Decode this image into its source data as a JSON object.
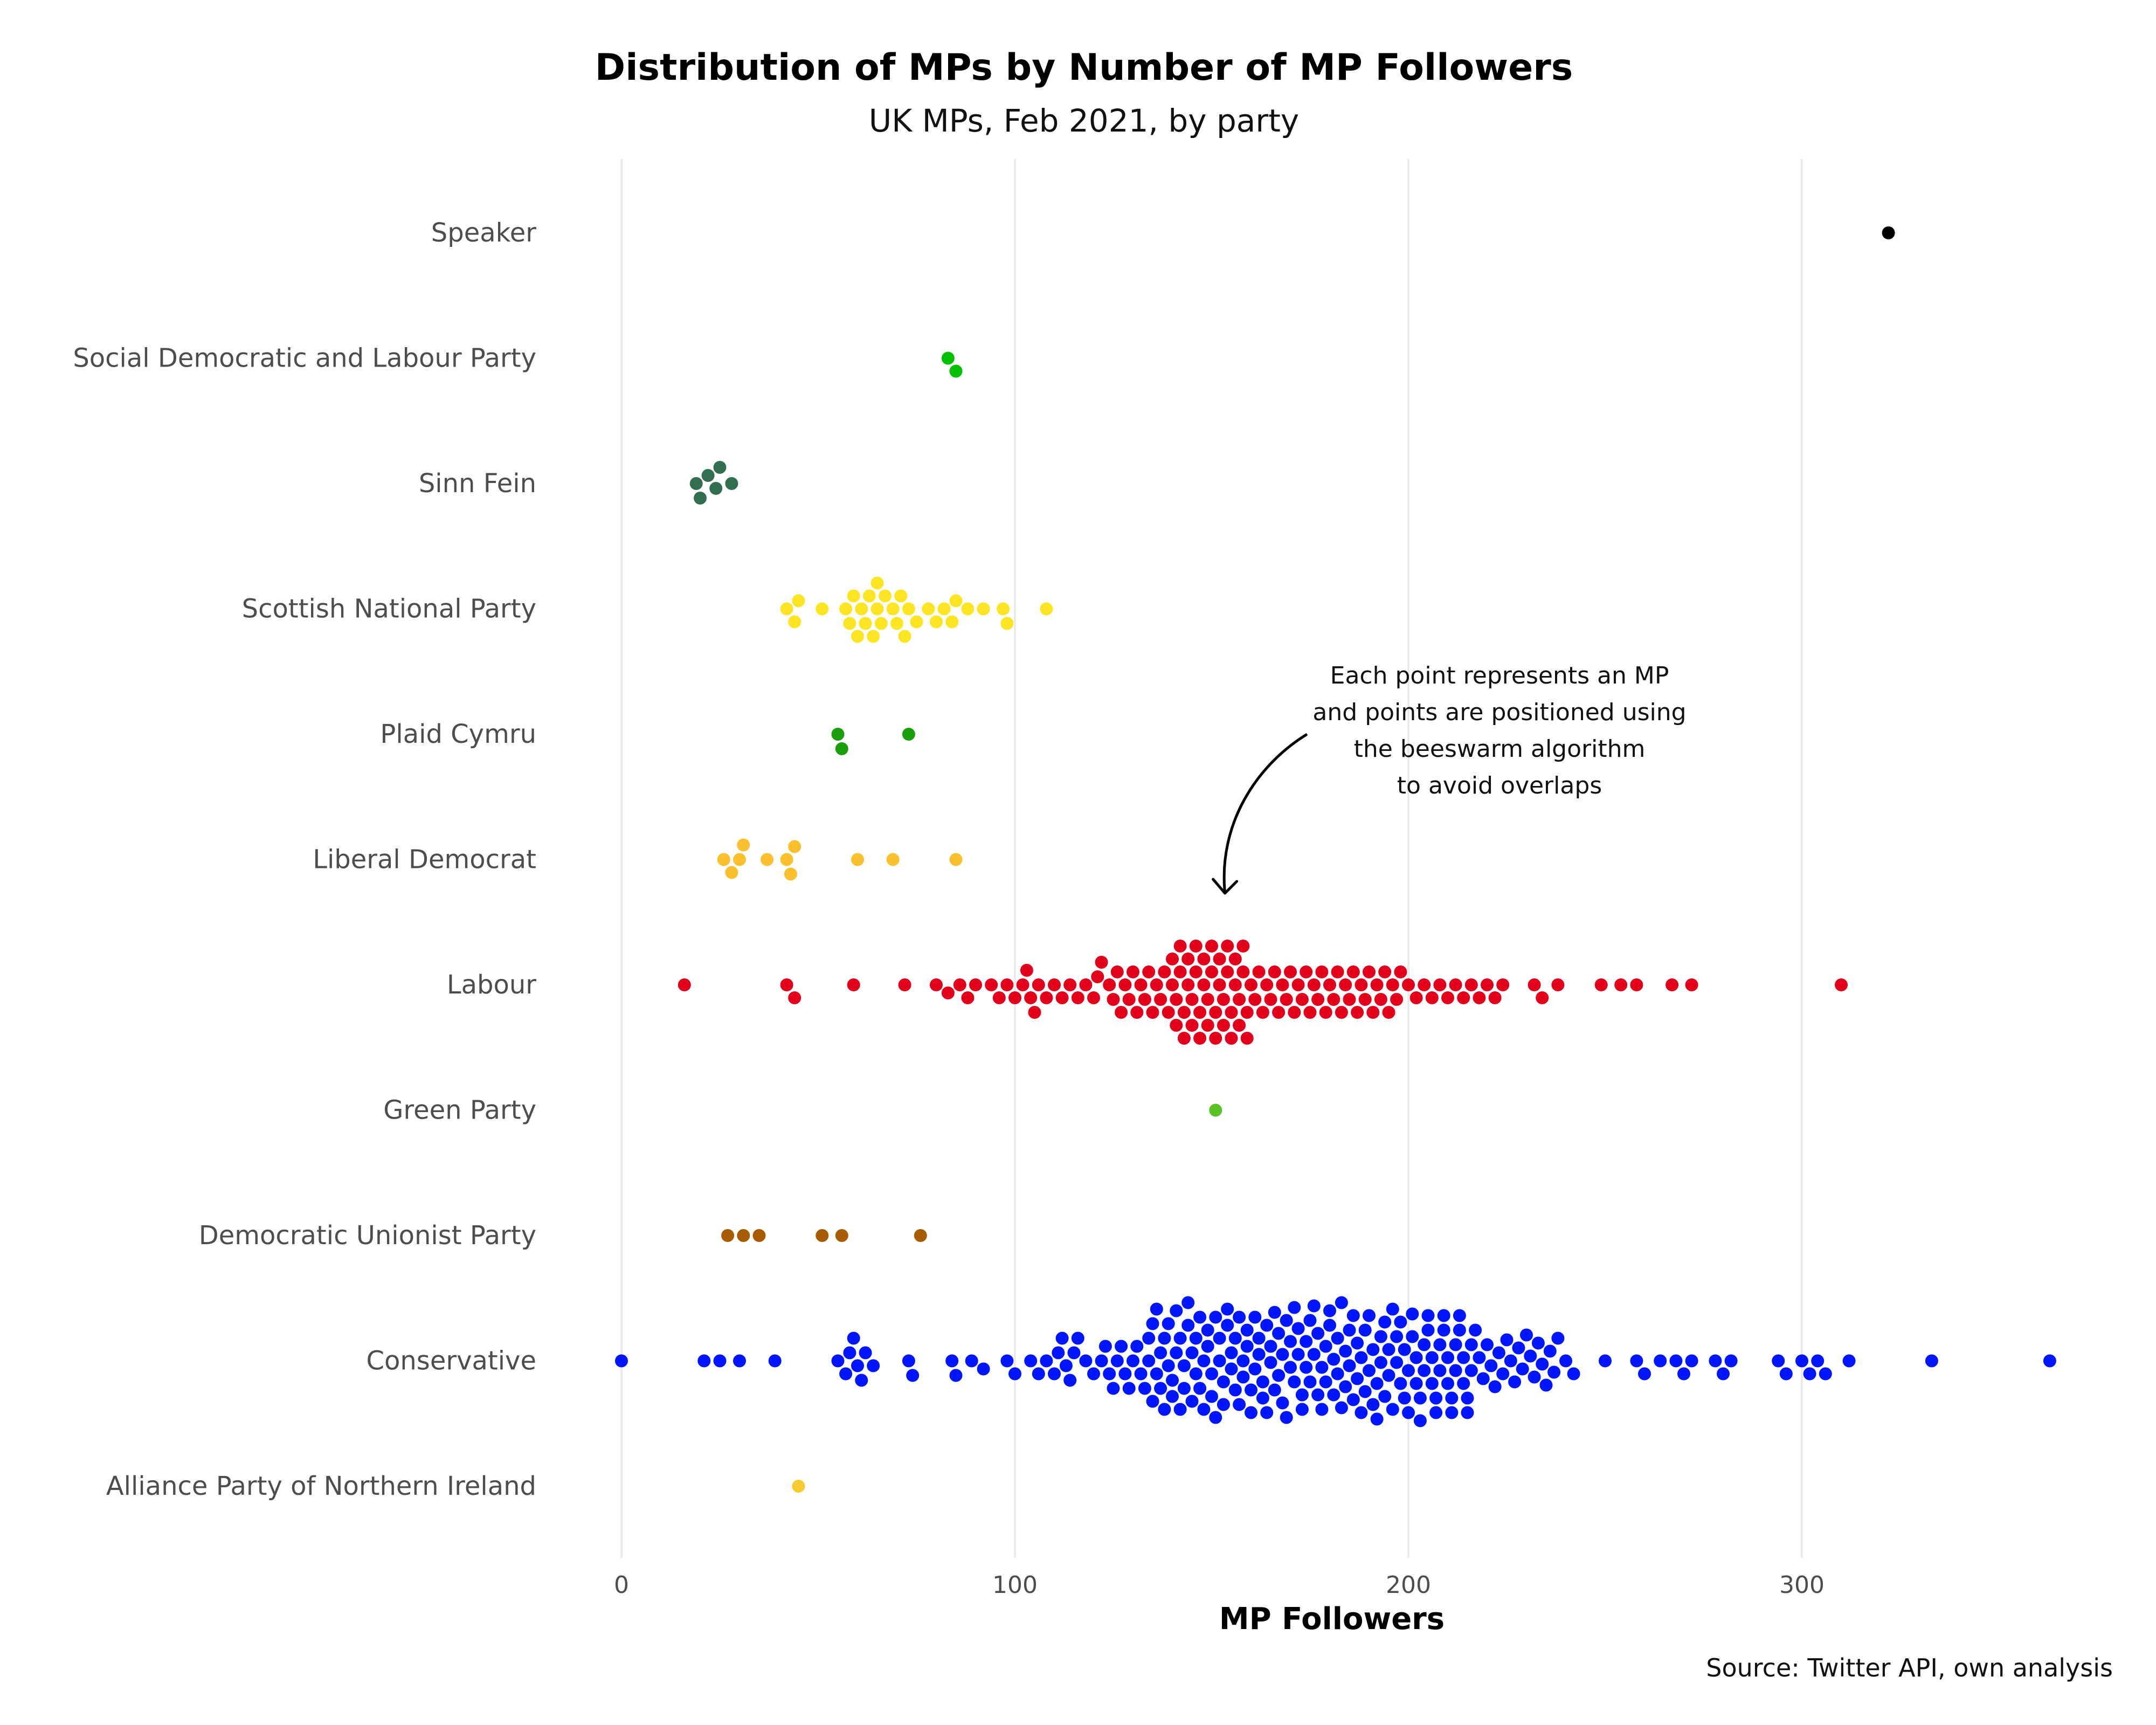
{
  "chart_data": {
    "type": "scatter",
    "style": "beeswarm",
    "title": "Distribution of MPs by Number of MP Followers",
    "subtitle": "UK MPs, Feb 2021, by party",
    "xlabel": "MP Followers",
    "ylabel": "",
    "xlim": [
      0,
      365
    ],
    "xticks": [
      "0",
      "100",
      "200",
      "300"
    ],
    "grid": "vertical major gridlines",
    "legend": "none",
    "caption": "Source: Twitter API, own analysis",
    "annotation": {
      "lines": [
        "Each point represents an MP",
        "and points are positioned using",
        "the beeswarm algorithm",
        "to avoid overlaps"
      ],
      "points_to": {
        "party": "Labour",
        "x": 152
      }
    },
    "categories": [
      "Speaker",
      "Social Democratic and Labour Party",
      "Sinn Fein",
      "Scottish National Party",
      "Plaid Cymru",
      "Liberal Democrat",
      "Labour",
      "Green Party",
      "Democratic Unionist Party",
      "Conservative",
      "Alliance Party of Northern Ireland"
    ],
    "series": [
      {
        "category": "Speaker",
        "color": "#000000",
        "x": [
          322
        ]
      },
      {
        "category": "Social Democratic and Labour Party",
        "color": "#00c000",
        "x": [
          83,
          85
        ]
      },
      {
        "category": "Sinn Fein",
        "color": "#326f50",
        "x": [
          19,
          20,
          22,
          24,
          25,
          28
        ]
      },
      {
        "category": "Scottish National Party",
        "color": "#fde524",
        "x": [
          42,
          44,
          45,
          51,
          57,
          58,
          59,
          60,
          61,
          62,
          63,
          64,
          65,
          65,
          66,
          67,
          69,
          70,
          71,
          72,
          73,
          75,
          78,
          80,
          82,
          84,
          85,
          88,
          92,
          97,
          98,
          108
        ]
      },
      {
        "category": "Plaid Cymru",
        "color": "#1a9e0a",
        "x": [
          55,
          56,
          73
        ]
      },
      {
        "category": "Liberal Democrat",
        "color": "#fbc02d",
        "x": [
          26,
          28,
          30,
          31,
          37,
          42,
          43,
          44,
          60,
          69,
          85
        ]
      },
      {
        "category": "Labour",
        "color": "#e2001a",
        "x": [
          16,
          42,
          44,
          59,
          72,
          80,
          83,
          86,
          88,
          90,
          94,
          96,
          98,
          100,
          102,
          103,
          104,
          105,
          106,
          108,
          110,
          112,
          114,
          116,
          118,
          120,
          121,
          122,
          124,
          125,
          126,
          127,
          128,
          129,
          130,
          131,
          132,
          133,
          134,
          135,
          136,
          137,
          138,
          139,
          140,
          140,
          141,
          141,
          142,
          142,
          143,
          143,
          144,
          144,
          145,
          145,
          146,
          146,
          147,
          147,
          148,
          148,
          149,
          149,
          150,
          150,
          151,
          151,
          152,
          152,
          153,
          153,
          154,
          154,
          155,
          155,
          156,
          156,
          157,
          157,
          158,
          158,
          159,
          159,
          160,
          161,
          162,
          163,
          164,
          165,
          166,
          167,
          168,
          169,
          170,
          171,
          172,
          173,
          174,
          175,
          176,
          177,
          178,
          179,
          180,
          181,
          182,
          183,
          184,
          185,
          186,
          187,
          188,
          189,
          190,
          191,
          192,
          193,
          194,
          195,
          196,
          197,
          198,
          200,
          202,
          204,
          206,
          208,
          210,
          212,
          214,
          216,
          218,
          220,
          222,
          224,
          232,
          234,
          238,
          249,
          254,
          258,
          267,
          272,
          310
        ]
      },
      {
        "category": "Green Party",
        "color": "#5ac224",
        "x": [
          151
        ]
      },
      {
        "category": "Democratic Unionist Party",
        "color": "#a85b00",
        "x": [
          27,
          31,
          35,
          51,
          56,
          76
        ]
      },
      {
        "category": "Conservative",
        "color": "#0015ff",
        "x": [
          0,
          21,
          25,
          30,
          39,
          55,
          57,
          58,
          59,
          60,
          61,
          62,
          64,
          73,
          74,
          84,
          85,
          89,
          92,
          98,
          100,
          104,
          106,
          108,
          110,
          111,
          112,
          113,
          114,
          115,
          116,
          118,
          120,
          122,
          123,
          124,
          125,
          126,
          127,
          128,
          129,
          130,
          131,
          132,
          133,
          134,
          134,
          135,
          135,
          136,
          136,
          137,
          137,
          138,
          138,
          139,
          139,
          140,
          140,
          141,
          141,
          142,
          142,
          143,
          143,
          144,
          144,
          145,
          145,
          146,
          146,
          147,
          147,
          148,
          148,
          149,
          149,
          150,
          150,
          151,
          151,
          152,
          152,
          153,
          153,
          154,
          154,
          155,
          155,
          156,
          156,
          157,
          157,
          158,
          158,
          159,
          159,
          160,
          160,
          161,
          161,
          162,
          162,
          163,
          163,
          164,
          164,
          165,
          165,
          166,
          166,
          167,
          167,
          168,
          168,
          169,
          169,
          170,
          170,
          171,
          171,
          172,
          172,
          173,
          173,
          174,
          174,
          175,
          175,
          176,
          176,
          177,
          177,
          178,
          178,
          179,
          179,
          180,
          180,
          181,
          181,
          182,
          182,
          183,
          183,
          184,
          184,
          185,
          185,
          186,
          186,
          187,
          187,
          188,
          188,
          189,
          189,
          190,
          190,
          191,
          191,
          192,
          192,
          193,
          193,
          194,
          194,
          195,
          195,
          196,
          196,
          197,
          197,
          198,
          198,
          199,
          199,
          200,
          200,
          201,
          201,
          202,
          202,
          203,
          203,
          204,
          204,
          205,
          205,
          206,
          206,
          207,
          207,
          208,
          208,
          209,
          209,
          210,
          210,
          211,
          211,
          212,
          212,
          213,
          213,
          214,
          214,
          215,
          215,
          216,
          216,
          217,
          218,
          219,
          220,
          221,
          222,
          223,
          224,
          225,
          226,
          227,
          228,
          229,
          230,
          231,
          232,
          233,
          234,
          235,
          236,
          237,
          238,
          240,
          242,
          250,
          258,
          260,
          264,
          268,
          270,
          272,
          278,
          280,
          282,
          294,
          296,
          300,
          302,
          304,
          306,
          312,
          333,
          363
        ]
      },
      {
        "category": "Alliance Party of Northern Ireland",
        "color": "#f6cb2f",
        "x": [
          45
        ]
      }
    ]
  }
}
